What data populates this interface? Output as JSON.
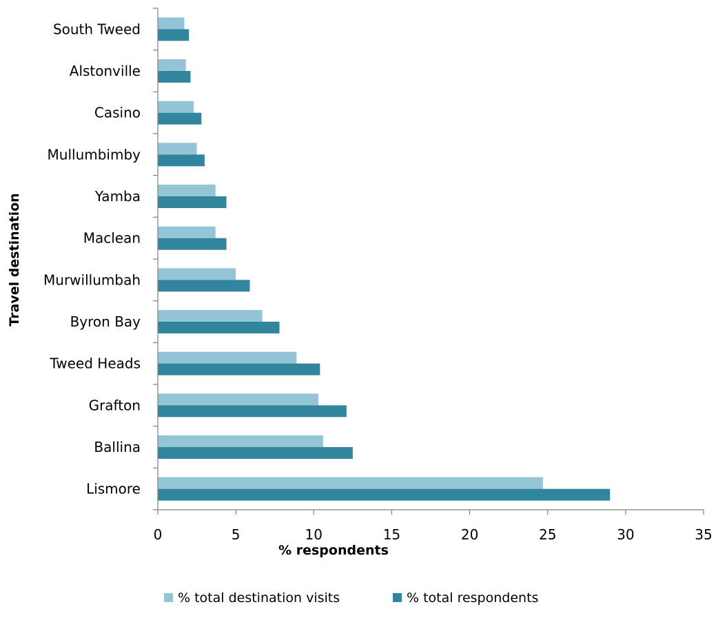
{
  "chart_data": {
    "type": "bar",
    "orientation": "horizontal",
    "categories": [
      "South Tweed",
      "Alstonville",
      "Casino",
      "Mullumbimby",
      "Yamba",
      "Maclean",
      "Murwillumbah",
      "Byron Bay",
      "Tweed Heads",
      "Grafton",
      "Ballina",
      "Lismore"
    ],
    "series": [
      {
        "name": "% total destination visits",
        "color": "#93c5d6",
        "values": [
          1.7,
          1.8,
          2.3,
          2.5,
          3.7,
          3.7,
          5.0,
          6.7,
          8.9,
          10.3,
          10.6,
          24.7
        ]
      },
      {
        "name": "% total respondents",
        "color": "#31859c",
        "values": [
          2.0,
          2.1,
          2.8,
          3.0,
          4.4,
          4.4,
          5.9,
          7.8,
          10.4,
          12.1,
          12.5,
          29.0
        ]
      }
    ],
    "xlabel": "% respondents",
    "ylabel": "Travel destination",
    "xlim": [
      0,
      35
    ],
    "xticks": [
      "0",
      "5",
      "10",
      "15",
      "20",
      "25",
      "30",
      "35"
    ],
    "grid": false,
    "legend_position": "bottom"
  }
}
